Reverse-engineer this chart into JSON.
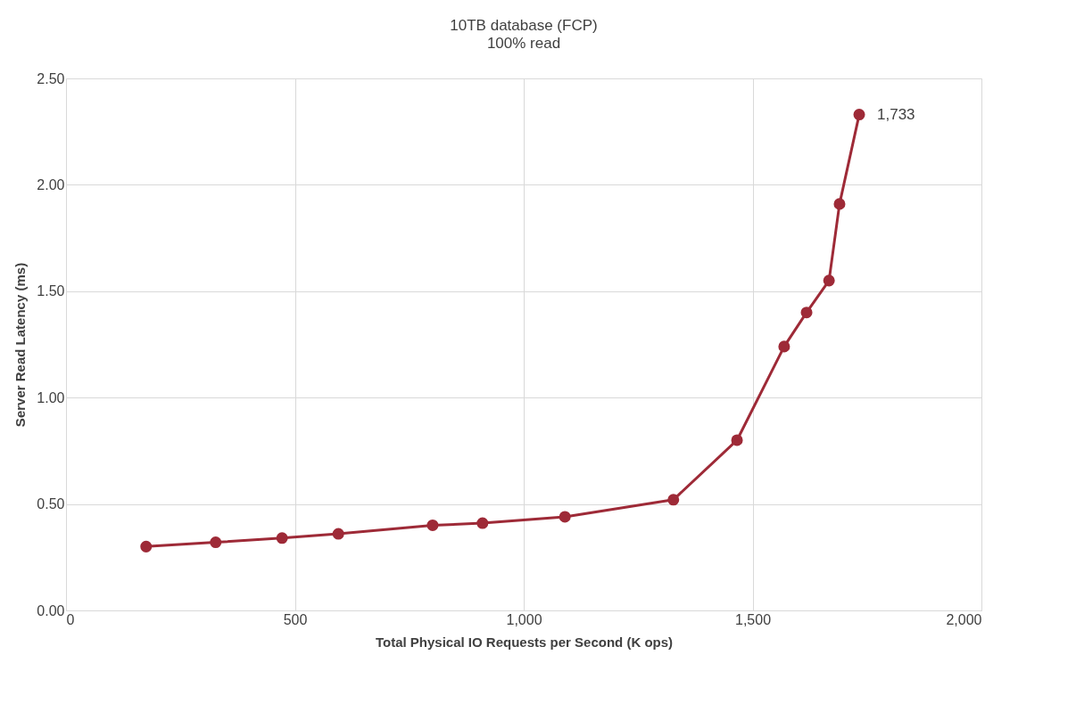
{
  "chart_data": {
    "type": "line",
    "title": "10TB database (FCP)",
    "subtitle": "100% read",
    "xlabel": "Total Physical IO Requests per Second (K ops)",
    "ylabel": "Server Read Latency (ms)",
    "x": [
      175,
      327,
      472,
      595,
      801,
      910,
      1090,
      1327,
      1466,
      1569,
      1618,
      1667,
      1690,
      1733
    ],
    "series": [
      {
        "color": "#9e2a37",
        "values": [
          0.3,
          0.32,
          0.34,
          0.36,
          0.4,
          0.41,
          0.44,
          0.52,
          0.8,
          1.24,
          1.4,
          1.55,
          1.91,
          2.33
        ]
      }
    ],
    "annotations": [
      {
        "text": "1,733",
        "x": 1733,
        "y": 2.33
      }
    ],
    "xlim": [
      0,
      2000
    ],
    "xticks": [
      0,
      {
        "value": 500,
        "label": "500"
      },
      {
        "value": 1000,
        "label": "1,000"
      },
      {
        "value": 1500,
        "label": "1,500"
      },
      {
        "value": 2000,
        "label": "2,000"
      }
    ],
    "ylim": [
      0,
      2.5
    ],
    "yticks": [
      {
        "value": 0,
        "label": "0.00"
      },
      {
        "value": 0.5,
        "label": "0.50"
      },
      {
        "value": 1,
        "label": "1.00"
      },
      {
        "value": 1.5,
        "label": "1.50"
      },
      {
        "value": 2,
        "label": "2.00"
      },
      {
        "value": 2.5,
        "label": "2.50"
      }
    ],
    "grid": true,
    "marker": "circle",
    "line_style": "solid"
  }
}
